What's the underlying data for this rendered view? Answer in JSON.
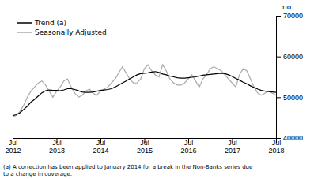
{
  "chart_data": {
    "type": "line",
    "ylabel": "no.",
    "footnote": "(a) A correction has been applied to January 2014 for a break in the Non-Banks series due\nto a change in coverage.",
    "categories": [
      "Jul\n2012",
      null,
      null,
      null,
      null,
      null,
      null,
      null,
      null,
      null,
      null,
      null,
      "Jul\n2013",
      null,
      null,
      null,
      null,
      null,
      null,
      null,
      null,
      null,
      null,
      null,
      "Jul\n2014",
      null,
      null,
      null,
      null,
      null,
      null,
      null,
      null,
      null,
      null,
      null,
      "Jul\n2015",
      null,
      null,
      null,
      null,
      null,
      null,
      null,
      null,
      null,
      null,
      null,
      "Jul\n2016",
      null,
      null,
      null,
      null,
      null,
      null,
      null,
      null,
      null,
      null,
      null,
      "Jul\n2017",
      null,
      null,
      null,
      null,
      null,
      null,
      null,
      null,
      null,
      null,
      null,
      "Jul\n2018"
    ],
    "series": [
      {
        "name": "Trend (a)",
        "color": "#000000",
        "values": [
          45500,
          45700,
          46200,
          47000,
          47800,
          48800,
          49500,
          50300,
          51100,
          51600,
          51800,
          51700,
          51700,
          51600,
          51800,
          52100,
          52100,
          51900,
          51600,
          51300,
          51200,
          51200,
          51300,
          51500,
          51700,
          51800,
          51900,
          52100,
          52500,
          53000,
          53500,
          54000,
          54500,
          55000,
          55500,
          55800,
          55900,
          56000,
          56200,
          56300,
          56100,
          55700,
          55500,
          55200,
          55000,
          54800,
          54700,
          54700,
          54800,
          54900,
          55000,
          55200,
          55400,
          55500,
          55600,
          55700,
          55800,
          55900,
          55800,
          55500,
          55100,
          54600,
          54200,
          53700,
          53300,
          52800,
          52400,
          52000,
          51700,
          51500,
          51400,
          51300,
          51200
        ]
      },
      {
        "name": "Seasonally Adjusted",
        "color": "#aaaaaa",
        "values": [
          45200,
          45500,
          46500,
          48000,
          50000,
          51500,
          52500,
          53500,
          54000,
          53000,
          51500,
          50000,
          51500,
          52500,
          54000,
          54500,
          52500,
          51000,
          50000,
          50500,
          51500,
          52000,
          51000,
          50500,
          51500,
          52000,
          52500,
          53500,
          54500,
          56000,
          57500,
          56000,
          54500,
          53500,
          53500,
          54500,
          57000,
          58000,
          56500,
          55500,
          55000,
          58000,
          56500,
          54500,
          53500,
          53000,
          53000,
          53500,
          54500,
          55500,
          54000,
          52500,
          54500,
          55500,
          57000,
          57500,
          57000,
          56500,
          55500,
          54500,
          53500,
          52500,
          55500,
          57000,
          56500,
          54500,
          52500,
          51000,
          50500,
          51000,
          51500,
          51000,
          50500
        ]
      }
    ],
    "ylim": [
      40000,
      70000
    ],
    "yticks": [
      40000,
      50000,
      60000,
      70000
    ],
    "grid": false,
    "legend": "upper left"
  }
}
